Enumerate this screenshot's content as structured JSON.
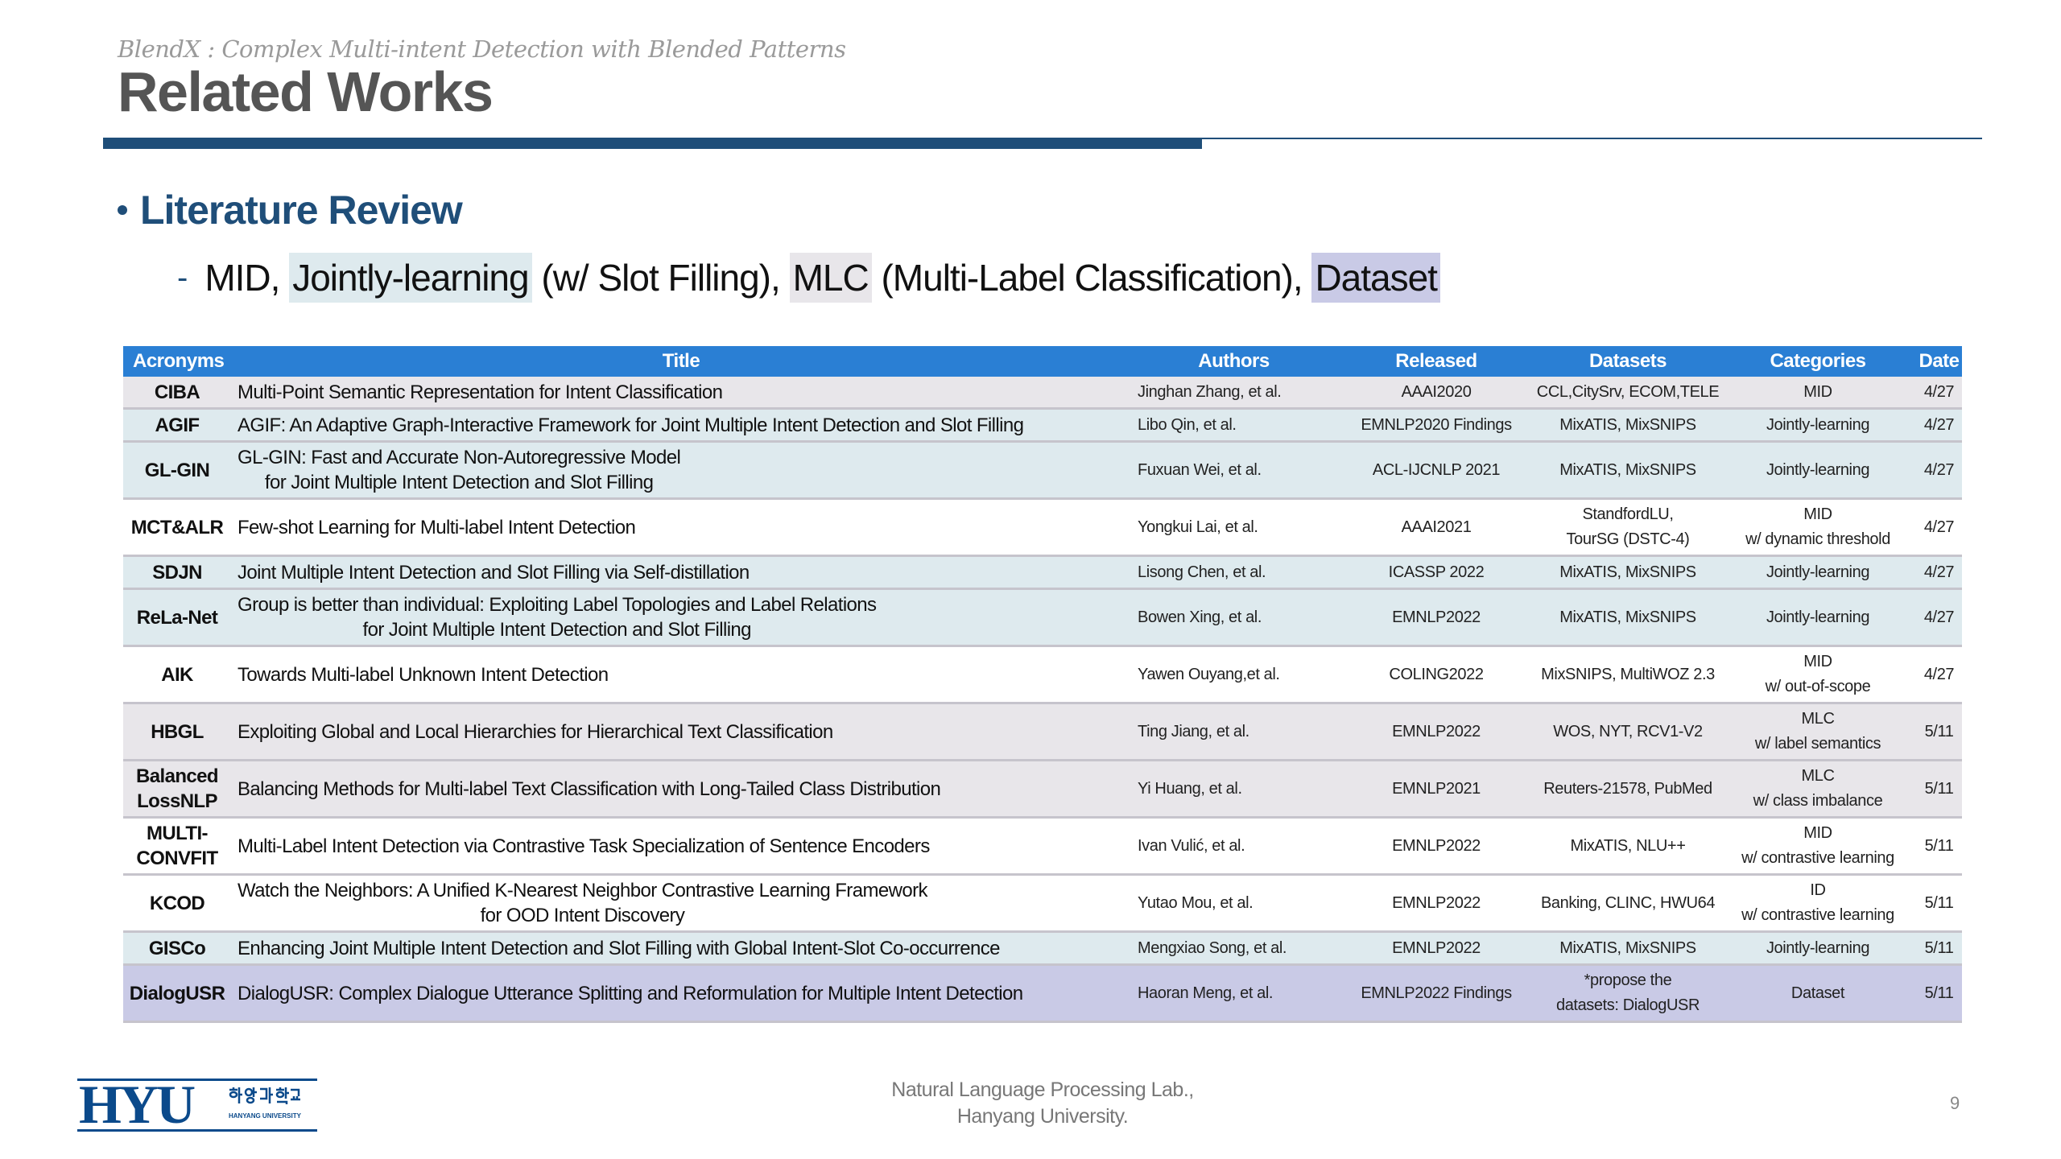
{
  "header": {
    "subtitle": "BlendX : Complex Multi-intent Detection with Blended Patterns",
    "title": "Related Works"
  },
  "bullet": {
    "heading": "Literature Review",
    "sub": {
      "dash": "-",
      "p1": "MID, ",
      "jointly": "Jointly-learning",
      "p2": " (w/ Slot Filling), ",
      "mlc": "MLC",
      "p3": " (Multi-Label Classification), ",
      "dataset": "Dataset"
    }
  },
  "colors": {
    "header_bg": "#2a7fd4",
    "accent": "#1f4e79",
    "gray_row": "#e8e6ea",
    "blue_row": "#deeaee",
    "purple_row": "#c9cae6"
  },
  "table": {
    "columns": [
      "Acronyms",
      "Title",
      "Authors",
      "Released",
      "Datasets",
      "Categories",
      "Date"
    ],
    "rows": [
      {
        "tone": "gray",
        "acronym": "CIBA",
        "title1": "Multi-Point Semantic Representation for Intent Classification",
        "title2": "",
        "authors": "Jinghan Zhang, et al.",
        "released": "AAAI2020",
        "datasets": "CCL,CitySrv, ECOM,TELE",
        "categories": "MID",
        "date": "4/27"
      },
      {
        "tone": "blue",
        "acronym": "AGIF",
        "title1": "AGIF: An Adaptive Graph-Interactive Framework  for Joint Multiple Intent Detection and Slot Filling",
        "title2": "",
        "authors": "Libo Qin, et al.",
        "released": "EMNLP2020 Findings",
        "datasets": "MixATIS, MixSNIPS",
        "categories": "Jointly-learning",
        "date": "4/27"
      },
      {
        "tone": "blue",
        "acronym": "GL-GIN",
        "title1": "GL-GIN: Fast and Accurate Non-Autoregressive Model",
        "title2": "for Joint Multiple Intent Detection and Slot Filling",
        "authors": "Fuxuan Wei, et al.",
        "released": "ACL-IJCNLP 2021",
        "datasets": "MixATIS, MixSNIPS",
        "categories": "Jointly-learning",
        "date": "4/27"
      },
      {
        "tone": "white",
        "acronym": "MCT&ALR",
        "title1": "Few-shot Learning for Multi-label Intent Detection",
        "title2": "",
        "authors": "Yongkui Lai, et al.",
        "released": "AAAI2021",
        "datasets": "StandfordLU,\nTourSG (DSTC-4)",
        "categories": "MID\nw/ dynamic threshold",
        "date": "4/27"
      },
      {
        "tone": "blue",
        "acronym": "SDJN",
        "title1": "Joint Multiple Intent Detection and Slot Filling via Self-distillation",
        "title2": "",
        "authors": "Lisong Chen, et al.",
        "released": "ICASSP 2022",
        "datasets": "MixATIS, MixSNIPS",
        "categories": "Jointly-learning",
        "date": "4/27"
      },
      {
        "tone": "blue",
        "acronym": "ReLa-Net",
        "title1": "Group is better than individual: Exploiting Label Topologies  and Label Relations",
        "title2": "for Joint Multiple Intent Detection and Slot Filling",
        "authors": "Bowen Xing, et al.",
        "released": "EMNLP2022",
        "datasets": "MixATIS, MixSNIPS",
        "categories": "Jointly-learning",
        "date": "4/27"
      },
      {
        "tone": "white",
        "acronym": "AIK",
        "title1": "Towards Multi-label Unknown Intent Detection",
        "title2": "",
        "authors": "Yawen Ouyang,et al.",
        "released": "COLING2022",
        "datasets": "MixSNIPS, MultiWOZ 2.3",
        "categories": "MID\nw/ out-of-scope",
        "date": "4/27"
      },
      {
        "tone": "gray",
        "acronym": "HBGL",
        "title1": "Exploiting Global and Local Hierarchies for Hierarchical Text Classification",
        "title2": "",
        "authors": "Ting Jiang, et al.",
        "released": "EMNLP2022",
        "datasets": "WOS, NYT, RCV1-V2",
        "categories": "MLC\nw/ label semantics",
        "date": "5/11"
      },
      {
        "tone": "gray",
        "acronym": "Balanced\nLossNLP",
        "title1": "Balancing Methods for Multi-label Text Classification with Long-Tailed Class Distribution",
        "title2": "",
        "authors": "Yi Huang, et al.",
        "released": "EMNLP2021",
        "datasets": "Reuters-21578, PubMed",
        "categories": "MLC\nw/ class imbalance",
        "date": "5/11"
      },
      {
        "tone": "white",
        "acronym": "MULTI-\nCONVFIT",
        "title1": "Multi-Label Intent Detection via Contrastive Task Specialization of Sentence Encoders",
        "title2": "",
        "authors": "Ivan Vulić, et al.",
        "released": "EMNLP2022",
        "datasets": "MixATIS, NLU++",
        "categories": "MID\nw/ contrastive learning",
        "date": "5/11"
      },
      {
        "tone": "white",
        "acronym": "KCOD",
        "title1": "Watch the Neighbors: A Unified K-Nearest Neighbor Contrastive Learning Framework",
        "title2": "for OOD Intent Discovery",
        "authors": "Yutao Mou, et al.",
        "released": "EMNLP2022",
        "datasets": "Banking, CLINC, HWU64",
        "categories": "ID\nw/ contrastive learning",
        "date": "5/11"
      },
      {
        "tone": "blue",
        "acronym": "GISCo",
        "title1": "Enhancing Joint Multiple Intent Detection and Slot Filling  with Global Intent-Slot Co-occurrence",
        "title2": "",
        "authors": "Mengxiao Song, et al.",
        "released": "EMNLP2022",
        "datasets": "MixATIS,  MixSNIPS",
        "categories": "Jointly-learning",
        "date": "5/11"
      },
      {
        "tone": "purple",
        "acronym": "DialogUSR",
        "title1": "DialogUSR: Complex Dialogue Utterance Splitting and Reformulation for Multiple Intent Detection",
        "title2": "",
        "authors": "Haoran Meng, et al.",
        "released": "EMNLP2022 Findings",
        "datasets": "*propose the\ndatasets: DialogUSR",
        "categories": "Dataset",
        "date": "5/11"
      }
    ]
  },
  "footer": {
    "logo_text": "HYU",
    "logo_korean": "한양대학교",
    "logo_english": "HANYANG UNIVERSITY",
    "lab_line1": "Natural Language Processing Lab.,",
    "lab_line2": "Hanyang University.",
    "page_number": "9"
  }
}
